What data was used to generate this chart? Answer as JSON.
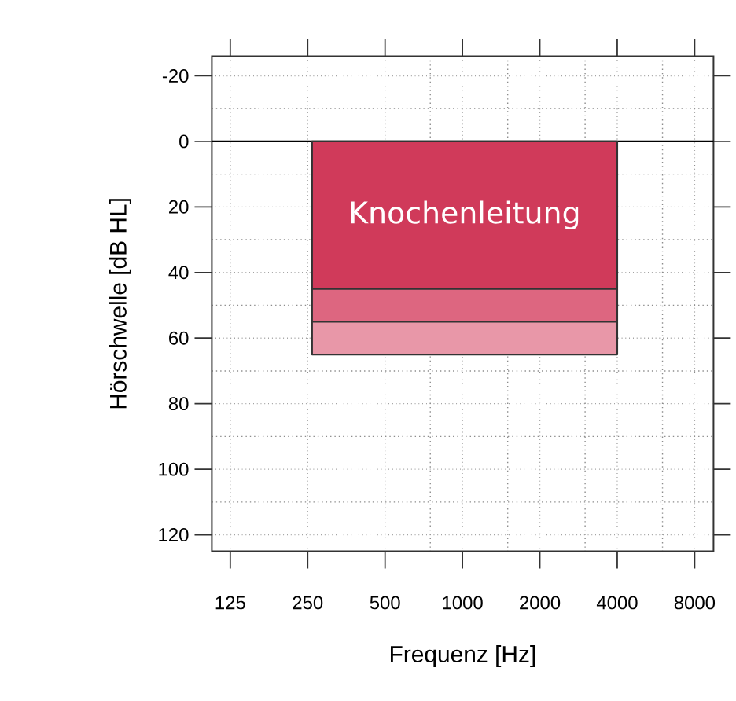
{
  "chart_data": {
    "type": "area",
    "stacked": true,
    "xlabel": "Frequenz [Hz]",
    "ylabel": "Hörschwelle [dB HL]",
    "log": "x",
    "grid": true,
    "x": [
      260,
      4000
    ],
    "series": [
      {
        "name": "Knochenleitung",
        "color": "#d03a5a",
        "values": [
          45,
          45
        ]
      },
      {
        "color": "#dd6680",
        "values": [
          10,
          10
        ]
      },
      {
        "color": "#e897a8",
        "values": [
          10,
          10
        ]
      }
    ],
    "xlim": [
      106,
      9475
    ],
    "ylim": [
      125,
      -26
    ],
    "xticks": [
      125,
      250,
      500,
      {
        "value": 750,
        "label": null
      },
      1000,
      {
        "value": 1500,
        "label": null
      },
      2000,
      {
        "value": 3000,
        "label": null
      },
      4000,
      {
        "value": 6000,
        "label": null
      },
      8000
    ],
    "yticks": [
      -20,
      {
        "value": -10,
        "label": null
      },
      0,
      {
        "value": 10,
        "label": null
      },
      20,
      {
        "value": 30,
        "label": null
      },
      40,
      {
        "value": 50,
        "label": null
      },
      60,
      {
        "value": 70,
        "label": null
      },
      80,
      {
        "value": 90,
        "label": null
      },
      100,
      {
        "value": 110,
        "label": null
      },
      120
    ],
    "ref_lines": [
      {
        "axis": "y",
        "value": 0,
        "color": "#000000"
      }
    ]
  }
}
